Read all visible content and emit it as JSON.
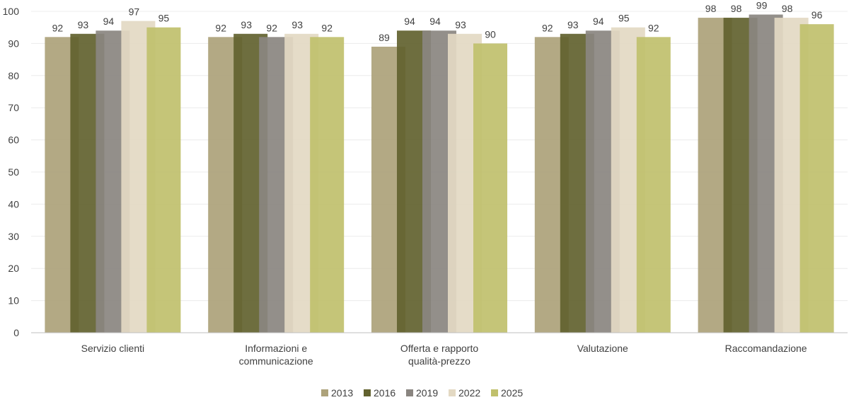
{
  "chart_data": {
    "type": "bar",
    "categories": [
      "Servizio clienti",
      "Informazioni e\ncommunicazione",
      "Offerta e rapporto\nqualità-prezzo",
      "Valutazione",
      "Raccomandazione"
    ],
    "series": [
      {
        "name": "2013",
        "values": [
          92,
          92,
          89,
          92,
          98
        ],
        "color": "#ada27a"
      },
      {
        "name": "2016",
        "values": [
          93,
          93,
          94,
          93,
          98
        ],
        "color": "#62622f"
      },
      {
        "name": "2019",
        "values": [
          94,
          92,
          94,
          94,
          99
        ],
        "color": "#8a8580"
      },
      {
        "name": "2022",
        "values": [
          97,
          93,
          93,
          95,
          98
        ],
        "color": "#e3d9c3"
      },
      {
        "name": "2025",
        "values": [
          95,
          92,
          90,
          92,
          96
        ],
        "color": "#c0c06c"
      }
    ],
    "ylim": [
      0,
      100
    ],
    "yticks": [
      0,
      10,
      20,
      30,
      40,
      50,
      60,
      70,
      80,
      90,
      100
    ],
    "grid": true,
    "legend_position": "bottom",
    "title": "",
    "xlabel": "",
    "ylabel": ""
  }
}
